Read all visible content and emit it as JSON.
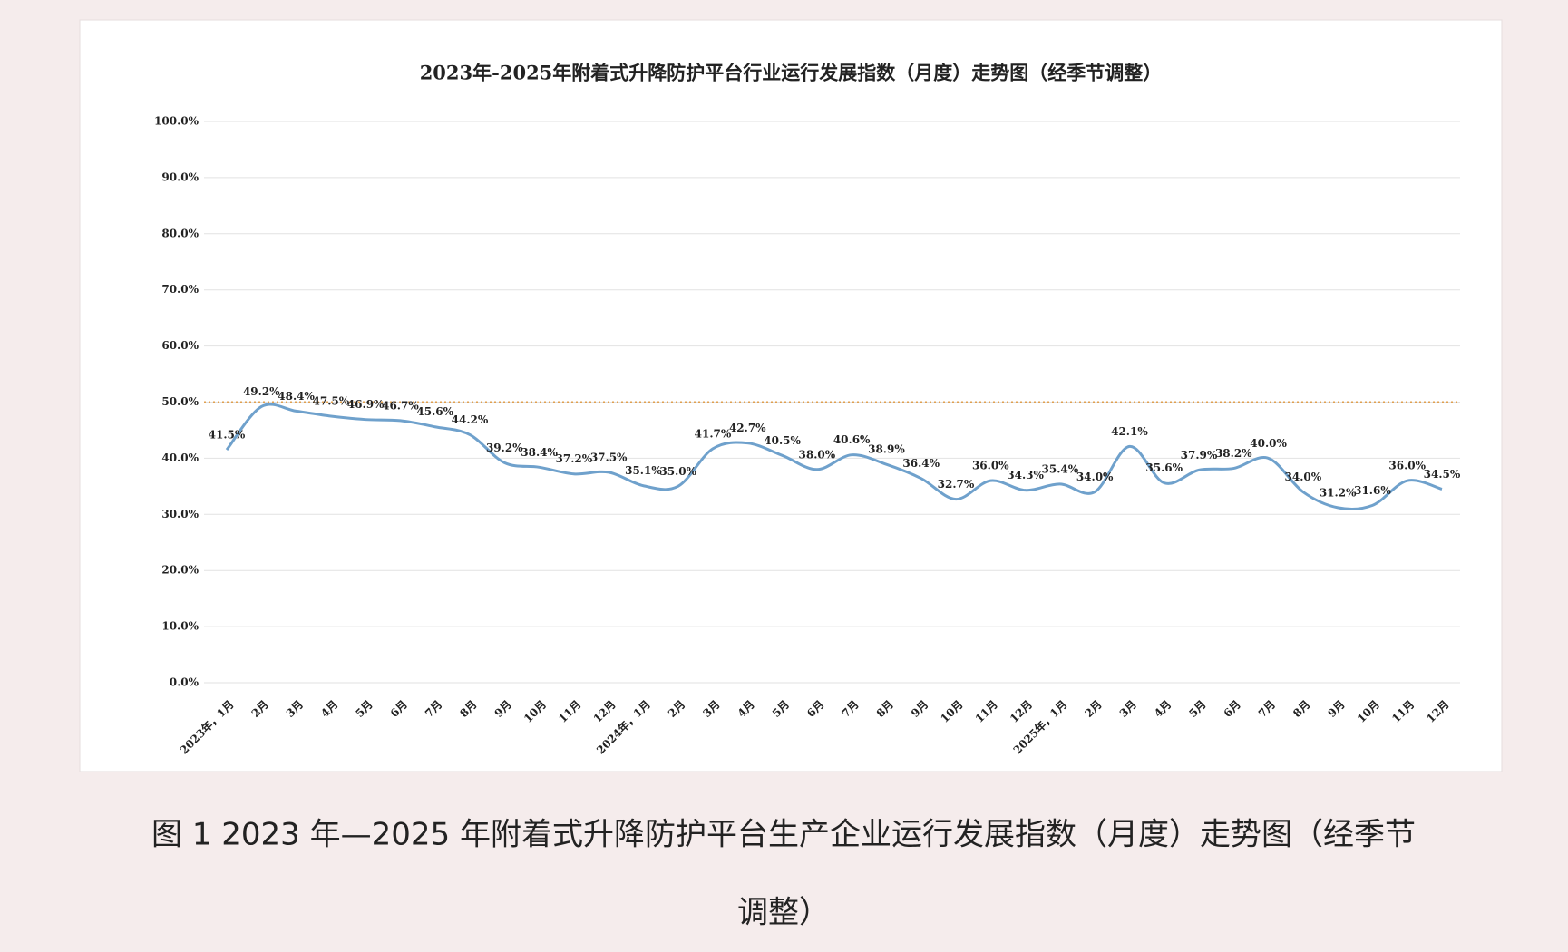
{
  "chart_data": {
    "type": "line",
    "title": "2023年-2025年附着式升降防护平台行业运行发展指数（月度）走势图（经季节调整）",
    "categories": [
      "2023年，1月",
      "2月",
      "3月",
      "4月",
      "5月",
      "6月",
      "7月",
      "8月",
      "9月",
      "10月",
      "11月",
      "12月",
      "2024年，1月",
      "2月",
      "3月",
      "4月",
      "5月",
      "6月",
      "7月",
      "8月",
      "9月",
      "10月",
      "11月",
      "12月",
      "2025年，1月",
      "2月",
      "3月",
      "4月",
      "5月",
      "6月",
      "7月",
      "8月",
      "9月",
      "10月",
      "11月",
      "12月"
    ],
    "series": [
      {
        "color": "#6fa1cc",
        "values": [
          41.5,
          49.2,
          48.4,
          47.5,
          46.9,
          46.7,
          45.6,
          44.2,
          39.2,
          38.4,
          37.2,
          37.5,
          35.1,
          35.0,
          41.7,
          42.7,
          40.5,
          38.0,
          40.6,
          38.9,
          36.4,
          32.7,
          36.0,
          34.3,
          35.4,
          34.0,
          42.1,
          35.6,
          37.9,
          38.2,
          40.0,
          34.0,
          31.2,
          31.6,
          36.0,
          34.5
        ],
        "value_labels": [
          "41.5%",
          "49.2%",
          "48.4%",
          "47.5%",
          "46.9%",
          "46.7%",
          "45.6%",
          "44.2%",
          "39.2%",
          "38.4%",
          "37.2%",
          "37.5%",
          "35.1%",
          "35.0%",
          "41.7%",
          "42.7%",
          "40.5%",
          "38.0%",
          "40.6%",
          "38.9%",
          "36.4%",
          "32.7%",
          "36.0%",
          "34.3%",
          "35.4%",
          "34.0%",
          "42.1%",
          "35.6%",
          "37.9%",
          "38.2%",
          "40.0%",
          "34.0%",
          "31.2%",
          "31.6%",
          "36.0%",
          "34.5%"
        ]
      }
    ],
    "ylim": [
      0,
      100
    ],
    "yticks": [
      {
        "value": 0,
        "label": "0.0%"
      },
      {
        "value": 10,
        "label": "10.0%"
      },
      {
        "value": 20,
        "label": "20.0%"
      },
      {
        "value": 30,
        "label": "30.0%"
      },
      {
        "value": 40,
        "label": "40.0%"
      },
      {
        "value": 50,
        "label": "50.0%"
      },
      {
        "value": 60,
        "label": "60.0%"
      },
      {
        "value": 70,
        "label": "70.0%"
      },
      {
        "value": 80,
        "label": "80.0%"
      },
      {
        "value": 90,
        "label": "90.0%"
      },
      {
        "value": 100,
        "label": "100.0%"
      }
    ],
    "grid": true,
    "reference_line": {
      "value": 50,
      "color": "#e0a050"
    }
  },
  "caption": {
    "line1": "图 1 2023 年—2025 年附着式升降防护平台生产企业运行发展指数（月度）走势图（经季节",
    "line2": "调整）"
  }
}
